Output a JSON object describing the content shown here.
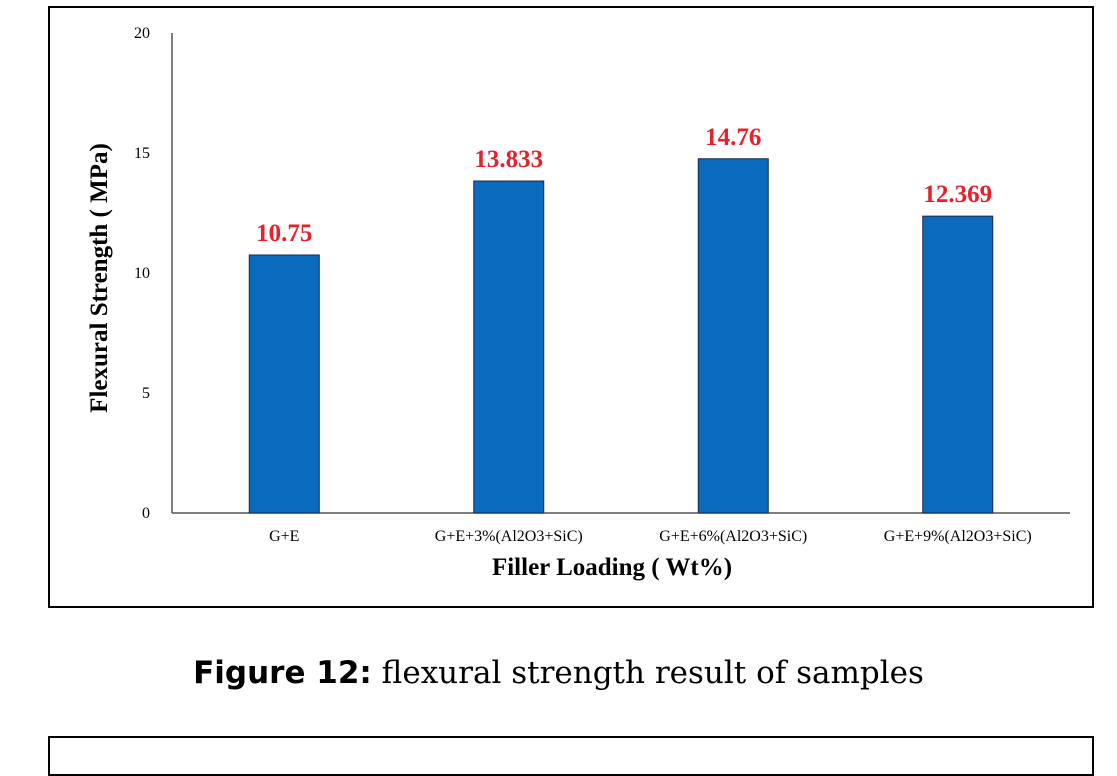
{
  "caption": {
    "label": "Figure 12:",
    "text": " flexural strength result of samples"
  },
  "chart_data": {
    "type": "bar",
    "title": "",
    "xlabel": "Filler Loading ( Wt%)",
    "ylabel": "Flexural Strength ( MPa)",
    "ylim": [
      0,
      20
    ],
    "yticks": [
      0,
      5,
      10,
      15,
      20
    ],
    "categories": [
      "G+E",
      "G+E+3%(Al2O3+SiC)",
      "G+E+6%(Al2O3+SiC)",
      "G+E+9%(Al2O3+SiC)"
    ],
    "values": [
      10.75,
      13.833,
      14.76,
      12.369
    ],
    "data_labels": [
      "10.75",
      "13.833",
      "14.76",
      "12.369"
    ],
    "grid": false,
    "legend": "none",
    "colors": {
      "bar": "#0a6bbd",
      "data_label": "#e8202a"
    }
  }
}
